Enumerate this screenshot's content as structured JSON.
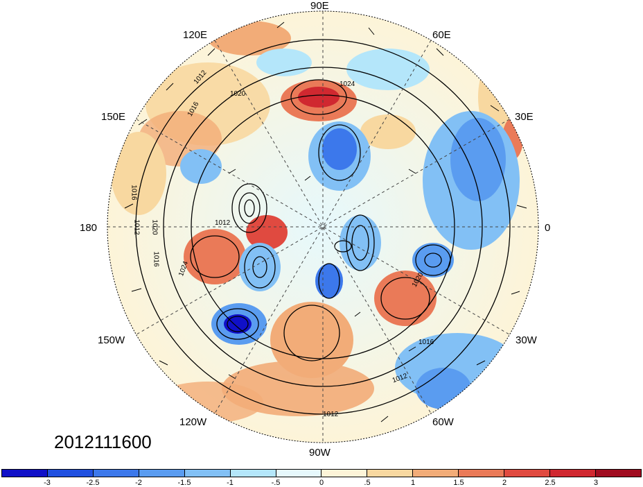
{
  "map": {
    "projection": "polar stereographic (north pole)",
    "longitude_labels": [
      "90E",
      "120E",
      "60E",
      "150E",
      "30E",
      "180",
      "0",
      "150W",
      "30W",
      "120W",
      "60W",
      "90W"
    ],
    "contour_labels": [
      "1012",
      "1016",
      "1020",
      "1024",
      "1016",
      "1012",
      "1020",
      "1016",
      "1012",
      "1020",
      "1016",
      "1012",
      "1024",
      "1012"
    ],
    "field_colors": {
      "land_outline": "#333333",
      "contour": "#000000"
    }
  },
  "timestamp": "2012111600",
  "colorbar": {
    "colors": [
      "#1010c8",
      "#2050e0",
      "#3c78eb",
      "#5a9cf0",
      "#82c0f5",
      "#b4e6fa",
      "#e6f8fc",
      "#fdf4d8",
      "#f8d8a0",
      "#f2ac78",
      "#ea7a58",
      "#e04a40",
      "#d02830",
      "#a00c20"
    ],
    "tick_labels": [
      "-3",
      "-2.5",
      "-2",
      "-1.5",
      "-1",
      "-.5",
      "0",
      ".5",
      "1",
      "1.5",
      "2",
      "2.5",
      "3"
    ]
  }
}
